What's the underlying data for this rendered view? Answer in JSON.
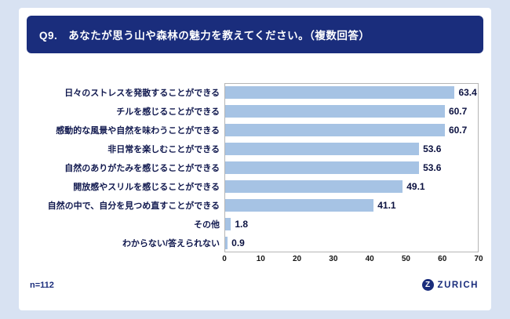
{
  "header": {
    "title": "Q9.　あなたが思う山や森林の魅力を教えてください。（複数回答）"
  },
  "footer": {
    "sample_size": "n=112",
    "brand": "ZURICH",
    "brand_initial": "Z"
  },
  "colors": {
    "page_bg": "#d8e2f2",
    "card_bg": "#ffffff",
    "header_bg": "#1a2d7c",
    "bar_fill": "#a6c3e4",
    "text_navy": "#10184e"
  },
  "chart_data": {
    "type": "bar",
    "orientation": "horizontal",
    "title": "Q9.　あなたが思う山や森林の魅力を教えてください。（複数回答）",
    "categories": [
      "日々のストレスを発散することができる",
      "チルを感じることができる",
      "感動的な風景や自然を味わうことができる",
      "非日常を楽しむことができる",
      "自然のありがたみを感じることができる",
      "開放感やスリルを感じることができる",
      "自然の中で、自分を見つめ直すことができる",
      "その他",
      "わからない/答えられない"
    ],
    "values": [
      63.4,
      60.7,
      60.7,
      53.6,
      53.6,
      49.1,
      41.1,
      1.8,
      0.9
    ],
    "value_labels": [
      "63.4",
      "60.7",
      "60.7",
      "53.6",
      "53.6",
      "49.1",
      "41.1",
      "1.8",
      "0.9"
    ],
    "xlabel": "",
    "ylabel": "",
    "xlim": [
      0,
      70
    ],
    "xticks": [
      0,
      10,
      20,
      30,
      40,
      50,
      60,
      70
    ],
    "grid": false,
    "legend": false,
    "sample_size": 112
  }
}
